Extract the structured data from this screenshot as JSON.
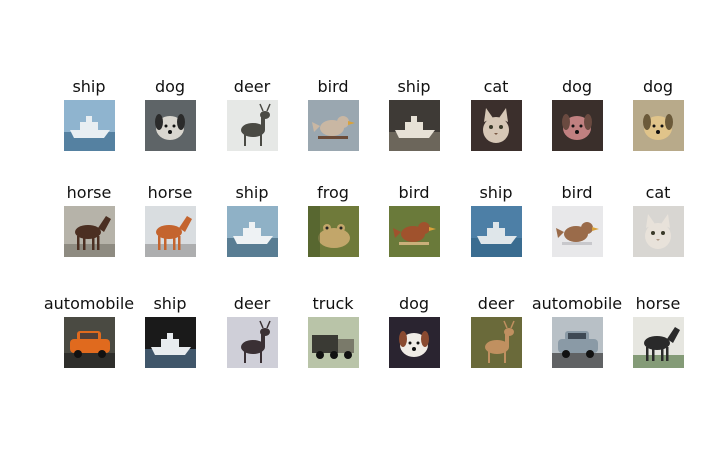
{
  "rows": [
    [
      {
        "label": "ship",
        "scene": "ship",
        "bg": "#8fb4cf",
        "fg": "#e8eef2",
        "accent": "#2f5f82"
      },
      {
        "label": "dog",
        "scene": "dog",
        "bg": "#5e6467",
        "fg": "#d9d6cf",
        "accent": "#2b2b2b"
      },
      {
        "label": "deer",
        "scene": "deer",
        "bg": "#e6e8e6",
        "fg": "#4a4a44",
        "accent": "#8a8a80"
      },
      {
        "label": "bird",
        "scene": "bird",
        "bg": "#9aa7b0",
        "fg": "#c9b7a3",
        "accent": "#6b4b38"
      },
      {
        "label": "ship",
        "scene": "ship",
        "bg": "#3e3a36",
        "fg": "#e7e1d6",
        "accent": "#8c8375"
      },
      {
        "label": "cat",
        "scene": "cat",
        "bg": "#3b2f2c",
        "fg": "#d6c7b6",
        "accent": "#7a5a45"
      },
      {
        "label": "dog",
        "scene": "dog",
        "bg": "#3a2f2b",
        "fg": "#c08080",
        "accent": "#6a4a40"
      },
      {
        "label": "dog",
        "scene": "dog",
        "bg": "#b8aa8a",
        "fg": "#e0c48a",
        "accent": "#6b5a3a"
      }
    ],
    [
      {
        "label": "horse",
        "scene": "horse",
        "bg": "#b6b3a9",
        "fg": "#4b2f22",
        "accent": "#7d7a70"
      },
      {
        "label": "horse",
        "scene": "horse",
        "bg": "#d9dde0",
        "fg": "#c4642e",
        "accent": "#9a9a9a"
      },
      {
        "label": "ship",
        "scene": "ship",
        "bg": "#8fb1c6",
        "fg": "#eef2f4",
        "accent": "#355a72"
      },
      {
        "label": "frog",
        "scene": "frog",
        "bg": "#6f7a3a",
        "fg": "#c2a66a",
        "accent": "#4a5a2a"
      },
      {
        "label": "bird",
        "scene": "bird",
        "bg": "#6a7a3a",
        "fg": "#a0522d",
        "accent": "#c9b07a"
      },
      {
        "label": "ship",
        "scene": "ship",
        "bg": "#4d7fa6",
        "fg": "#dfe6ea",
        "accent": "#2f5f82"
      },
      {
        "label": "bird",
        "scene": "bird",
        "bg": "#e8e8ea",
        "fg": "#9a6b4a",
        "accent": "#c8c8cc"
      },
      {
        "label": "cat",
        "scene": "cat",
        "bg": "#d8d6d2",
        "fg": "#e8e2da",
        "accent": "#b09a88"
      }
    ],
    [
      {
        "label": "automobile",
        "scene": "car",
        "bg": "#4a4a42",
        "fg": "#e06a1e",
        "accent": "#222222"
      },
      {
        "label": "ship",
        "scene": "ship",
        "bg": "#1a1a1a",
        "fg": "#e8ecef",
        "accent": "#5a7fa0"
      },
      {
        "label": "deer",
        "scene": "deer",
        "bg": "#cfcfd8",
        "fg": "#3a3034",
        "accent": "#8a8aa0"
      },
      {
        "label": "truck",
        "scene": "truck",
        "bg": "#b9c4a8",
        "fg": "#3a3a34",
        "accent": "#7a7a6a"
      },
      {
        "label": "dog",
        "scene": "dog",
        "bg": "#2a2430",
        "fg": "#f0ece6",
        "accent": "#8a4a30"
      },
      {
        "label": "deer",
        "scene": "deer",
        "bg": "#6a6a3a",
        "fg": "#c09060",
        "accent": "#e8e0d0"
      },
      {
        "label": "automobile",
        "scene": "car",
        "bg": "#b8c0c6",
        "fg": "#8a9aa6",
        "accent": "#3a3a3a"
      },
      {
        "label": "horse",
        "scene": "horse",
        "bg": "#e6e6e0",
        "fg": "#2a2a2a",
        "accent": "#5a7a4a"
      }
    ]
  ]
}
